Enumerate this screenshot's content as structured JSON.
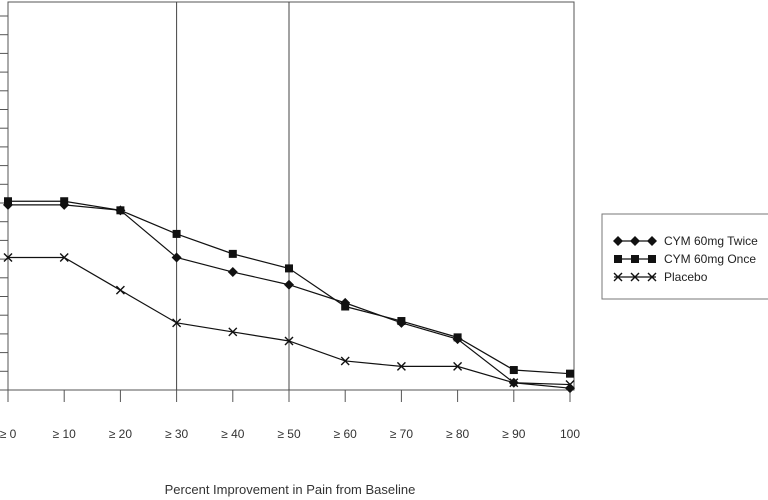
{
  "chart_data": {
    "type": "line",
    "title": "",
    "xlabel": "Percent Improvement in Pain from Baseline",
    "ylabel": "",
    "categories": [
      "≥ 0",
      "≥ 10",
      "≥ 20",
      "≥ 30",
      "≥ 40",
      "≥ 50",
      "≥ 60",
      "≥ 70",
      "≥ 80",
      "≥ 90",
      "100"
    ],
    "ylim": [
      0,
      100
    ],
    "grid": false,
    "vertical_reference_lines_at": [
      "≥ 30",
      "≥ 50"
    ],
    "legend_position": "right",
    "series": [
      {
        "name": "CYM 60mg Twice",
        "marker": "diamond",
        "color": "#111111",
        "values": [
          51,
          51,
          49.5,
          36.5,
          32.5,
          29,
          24,
          18.5,
          14,
          2,
          0.5
        ]
      },
      {
        "name": "CYM 60mg Once",
        "marker": "square",
        "color": "#111111",
        "values": [
          52,
          52,
          49.5,
          43,
          37.5,
          33.5,
          23,
          19,
          14.5,
          5.5,
          4.5
        ]
      },
      {
        "name": "Placebo",
        "marker": "x",
        "color": "#111111",
        "values": [
          36.5,
          36.5,
          27.5,
          18.5,
          16,
          13.5,
          8,
          6.5,
          6.5,
          2,
          1.5
        ]
      }
    ]
  }
}
